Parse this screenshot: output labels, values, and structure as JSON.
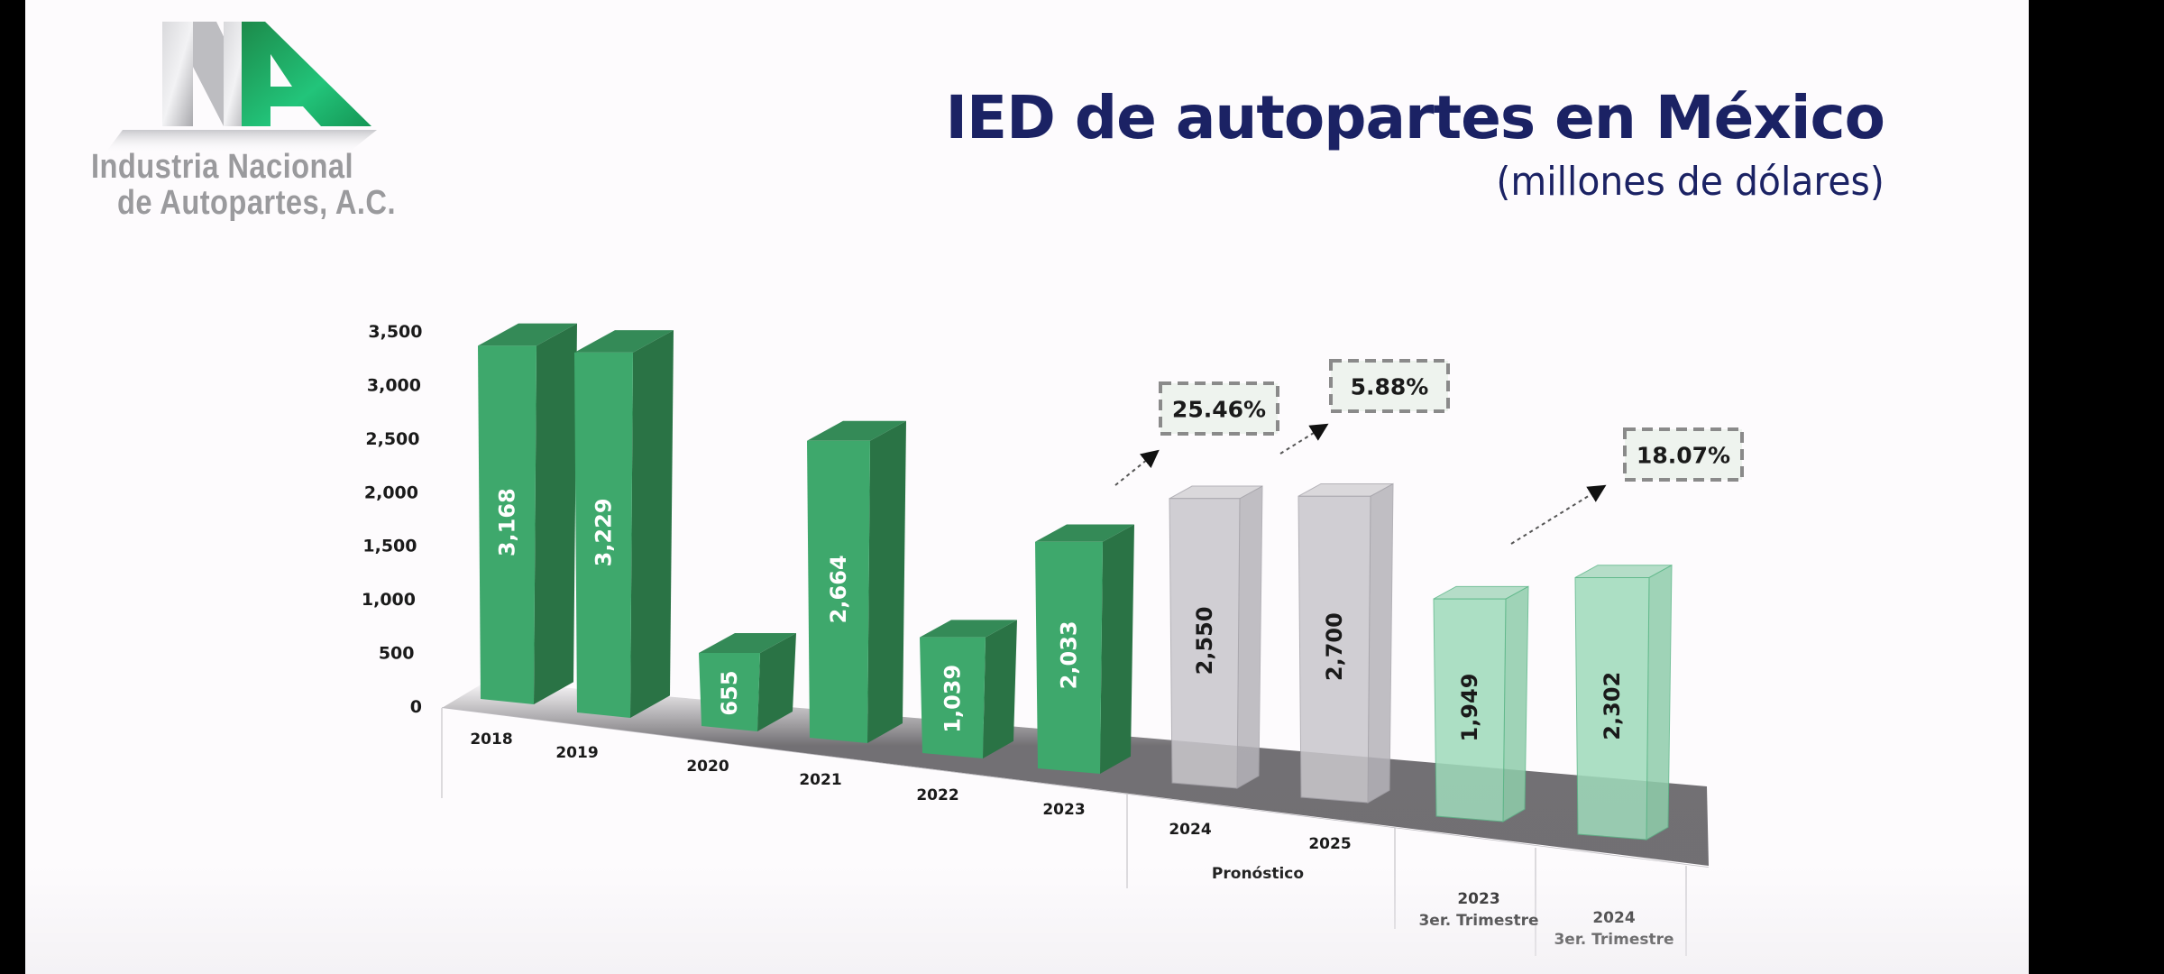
{
  "logo": {
    "line1": "Industria Nacional",
    "line2": "de Autopartes, A.C.",
    "colors": {
      "green": "#1fae5c",
      "silver": "#c9c9cc"
    }
  },
  "header": {
    "title": "IED de autopartes en México",
    "subtitle": "(millones de dólares)",
    "color": "#1b2264"
  },
  "chart_data": {
    "type": "bar",
    "title": "IED de autopartes en México",
    "subtitle": "(millones de dólares)",
    "xlabel": "",
    "ylabel": "",
    "ylim": [
      0,
      3500
    ],
    "yticks": [
      0,
      500,
      1000,
      1500,
      2000,
      2500,
      3000,
      3500
    ],
    "ytick_labels": [
      "0",
      "500",
      "1,000",
      "1,500",
      "2,000",
      "2,500",
      "3,000",
      "3,500"
    ],
    "grid": false,
    "style": "3d-bars",
    "categories": [
      "2018",
      "2019",
      "2020",
      "2021",
      "2022",
      "2023",
      "2024",
      "2025",
      "2023 3er. Trimestre",
      "2024 3er. Trimestre"
    ],
    "bars": [
      {
        "category": "2018",
        "line1": "2018",
        "line2": "",
        "value": 3168,
        "label": "3,168",
        "kind": "actual"
      },
      {
        "category": "2019",
        "line1": "2019",
        "line2": "",
        "value": 3229,
        "label": "3,229",
        "kind": "actual"
      },
      {
        "category": "2020",
        "line1": "2020",
        "line2": "",
        "value": 655,
        "label": "655",
        "kind": "actual"
      },
      {
        "category": "2021",
        "line1": "2021",
        "line2": "",
        "value": 2664,
        "label": "2,664",
        "kind": "actual"
      },
      {
        "category": "2022",
        "line1": "2022",
        "line2": "",
        "value": 1039,
        "label": "1,039",
        "kind": "actual"
      },
      {
        "category": "2023",
        "line1": "2023",
        "line2": "",
        "value": 2033,
        "label": "2,033",
        "kind": "actual"
      },
      {
        "category": "2024",
        "line1": "2024",
        "line2": "",
        "value": 2550,
        "label": "2,550",
        "kind": "forecast"
      },
      {
        "category": "2025",
        "line1": "2025",
        "line2": "",
        "value": 2700,
        "label": "2,700",
        "kind": "forecast"
      },
      {
        "category": "2023 3er. Trimestre",
        "line1": "2023",
        "line2": "3er. Trimestre",
        "value": 1949,
        "label": "1,949",
        "kind": "quarter"
      },
      {
        "category": "2024 3er. Trimestre",
        "line1": "2024",
        "line2": "3er. Trimestre",
        "value": 2302,
        "label": "2,302",
        "kind": "quarter"
      }
    ],
    "groups": [
      {
        "label": "Pronóstico",
        "categories": [
          "2024",
          "2025"
        ]
      }
    ],
    "annotations": [
      {
        "text": "25.46%",
        "from": "2023",
        "to": "2024"
      },
      {
        "text": "5.88%",
        "from": "2024",
        "to": "2025"
      },
      {
        "text": "18.07%",
        "from": "2023 3er. Trimestre",
        "to": "2024 3er. Trimestre"
      }
    ],
    "colors": {
      "actual_front": "#3ea86c",
      "actual_side": "#2a7345",
      "actual_top": "#348a57",
      "forecast_fill": "#c9c7cc",
      "quarter_fill": "#9fdbbb",
      "annotation_border": "#8a8a8a",
      "annotation_bg": "#eef3ee"
    }
  }
}
